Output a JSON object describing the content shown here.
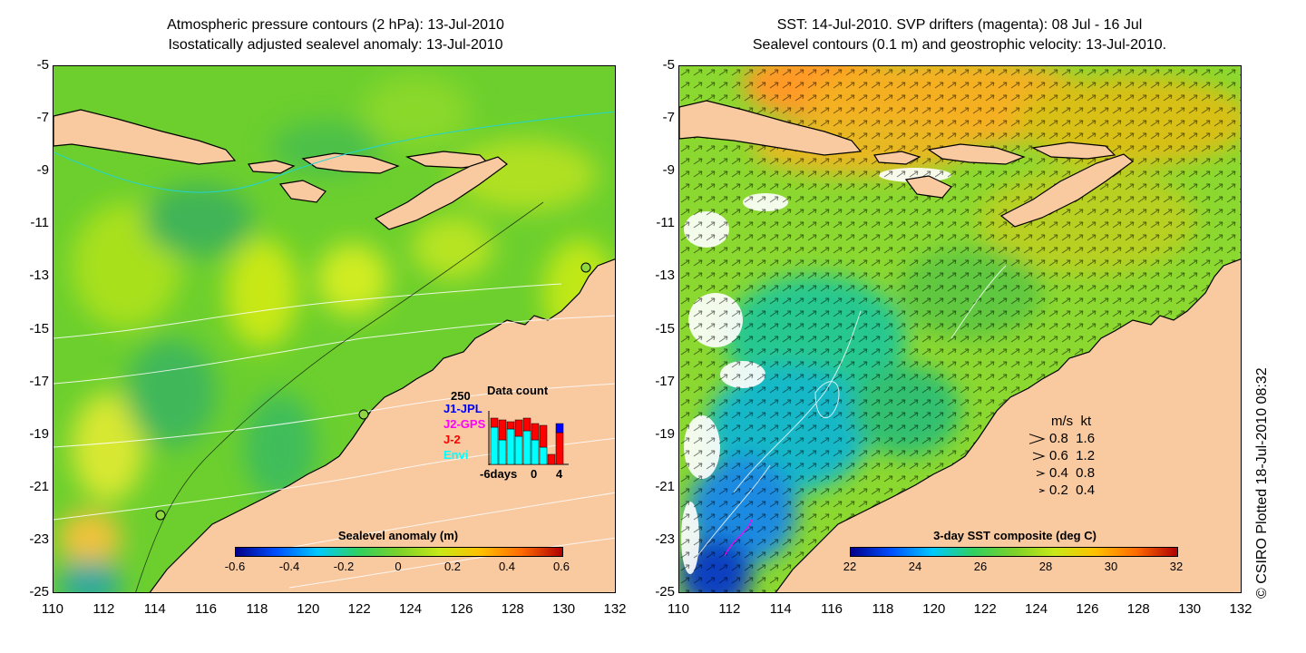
{
  "left_map": {
    "title_line1": "Atmospheric pressure contours (2 hPa): 13-Jul-2010",
    "title_line2": "Isostatically adjusted sealevel anomaly: 13-Jul-2010",
    "colorbar": {
      "title": "Sealevel anomaly (m)",
      "labels": [
        "-0.6",
        "-0.4",
        "-0.2",
        "0",
        "0.2",
        "0.4",
        "0.6"
      ]
    },
    "data_count": {
      "title": "Data count",
      "max_label": "250",
      "series": [
        {
          "name": "J1-JPL",
          "color": "#0000ff"
        },
        {
          "name": "J2-GPS",
          "color": "#ff00ff"
        },
        {
          "name": "J-2",
          "color": "#ff0000"
        },
        {
          "name": "Envi",
          "color": "#00ffff"
        }
      ],
      "x_labels": [
        "-6days",
        "0",
        "4"
      ]
    }
  },
  "right_map": {
    "title_line1": "SST: 14-Jul-2010. SVP drifters (magenta): 08 Jul - 16 Jul",
    "title_line2": "Sealevel contours (0.1 m) and geostrophic velocity: 13-Jul-2010.",
    "colorbar": {
      "title": "3-day SST composite (deg C)",
      "labels": [
        "22",
        "24",
        "26",
        "28",
        "30",
        "32"
      ]
    },
    "velocity_legend": {
      "header": "m/s  kt",
      "rows": [
        "0.8  1.6",
        "0.6  1.2",
        "0.4  0.8",
        "0.2  0.4"
      ]
    }
  },
  "y_ticks": [
    "-5",
    "-7",
    "-9",
    "-11",
    "-13",
    "-15",
    "-17",
    "-19",
    "-21",
    "-23",
    "-25"
  ],
  "x_ticks": [
    "110",
    "112",
    "114",
    "116",
    "118",
    "120",
    "122",
    "124",
    "126",
    "128",
    "130",
    "132"
  ],
  "credit": "© CSIRO Plotted 18-Jul-2010 08:32",
  "colors": {
    "land": "#f9c9a0",
    "ocean_left": "#5fcc2a",
    "ocean_right": "#8bd830",
    "coast": "#000000"
  }
}
